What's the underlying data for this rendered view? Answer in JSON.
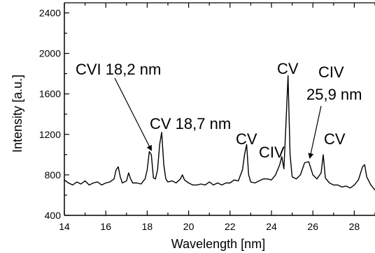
{
  "chart_data": {
    "type": "line",
    "title": "",
    "xlabel": "Wavelength [nm]",
    "ylabel": "Intensity [a.u.]",
    "xlim": [
      14,
      29
    ],
    "ylim": [
      400,
      2500
    ],
    "xticks": [
      14,
      16,
      18,
      20,
      22,
      24,
      26,
      28
    ],
    "xtick_labels": [
      "14",
      "16",
      "18",
      "20",
      "22",
      "24",
      "26",
      "28"
    ],
    "yticks": [
      400,
      800,
      1200,
      1600,
      2000,
      2400
    ],
    "ytick_labels": [
      "400",
      "800",
      "1200",
      "1600",
      "2000",
      "2400"
    ],
    "grid": false,
    "series": [
      {
        "color": "#000000",
        "x": [
          14.0,
          14.2,
          14.4,
          14.6,
          14.8,
          15.0,
          15.2,
          15.4,
          15.6,
          15.8,
          16.0,
          16.2,
          16.4,
          16.5,
          16.6,
          16.7,
          16.8,
          17.0,
          17.1,
          17.2,
          17.3,
          17.5,
          17.7,
          17.9,
          18.0,
          18.1,
          18.2,
          18.3,
          18.4,
          18.5,
          18.6,
          18.7,
          18.8,
          18.9,
          19.0,
          19.2,
          19.4,
          19.6,
          19.7,
          19.8,
          20.0,
          20.2,
          20.4,
          20.6,
          20.8,
          21.0,
          21.2,
          21.4,
          21.6,
          21.8,
          22.0,
          22.2,
          22.4,
          22.6,
          22.7,
          22.8,
          22.9,
          23.0,
          23.2,
          23.4,
          23.6,
          23.8,
          24.0,
          24.2,
          24.4,
          24.5,
          24.6,
          24.7,
          24.8,
          24.9,
          25.0,
          25.2,
          25.4,
          25.6,
          25.8,
          26.0,
          26.2,
          26.4,
          26.5,
          26.6,
          26.8,
          27.0,
          27.2,
          27.4,
          27.6,
          27.8,
          28.0,
          28.2,
          28.4,
          28.5,
          28.6,
          28.8,
          29.0
        ],
        "y": [
          750,
          720,
          700,
          730,
          710,
          740,
          700,
          720,
          730,
          700,
          720,
          730,
          760,
          850,
          880,
          780,
          720,
          740,
          820,
          760,
          720,
          720,
          710,
          760,
          850,
          1030,
          1000,
          770,
          760,
          850,
          1100,
          1220,
          900,
          760,
          730,
          740,
          720,
          760,
          800,
          750,
          720,
          700,
          700,
          710,
          700,
          730,
          700,
          720,
          700,
          720,
          720,
          750,
          740,
          850,
          1000,
          1100,
          800,
          730,
          720,
          740,
          760,
          760,
          750,
          800,
          900,
          980,
          860,
          1300,
          1780,
          1000,
          780,
          760,
          800,
          920,
          930,
          800,
          760,
          820,
          1000,
          770,
          720,
          700,
          700,
          680,
          690,
          670,
          700,
          750,
          880,
          900,
          780,
          700,
          650
        ]
      }
    ],
    "annotations": [
      {
        "text": "CVI 18,2 nm",
        "x": 18.2
      },
      {
        "text": "CV 18,7 nm",
        "x": 18.7
      },
      {
        "text": "CV",
        "x": 22.8
      },
      {
        "text": "CIV",
        "x": 24.5
      },
      {
        "text": "CV",
        "x": 24.8
      },
      {
        "text": "CIV",
        "x": 25.9
      },
      {
        "text": "25,9 nm",
        "x": 25.9
      },
      {
        "text": "CV",
        "x": 26.5
      }
    ]
  }
}
